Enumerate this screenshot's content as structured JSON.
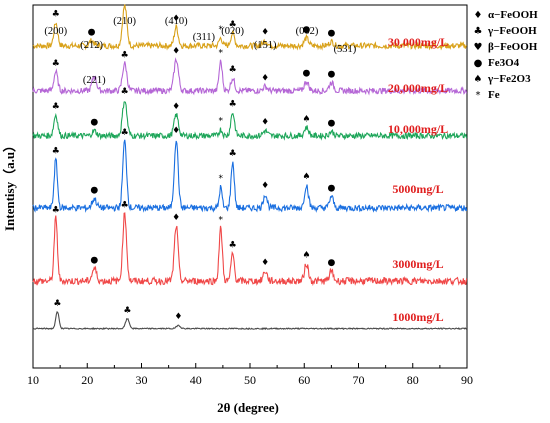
{
  "chart_data": {
    "type": "line",
    "title": "",
    "xlabel": "2θ (degree)",
    "ylabel": "Intentisy（a.u）",
    "xlim": [
      10,
      90
    ],
    "xticks": [
      10,
      20,
      30,
      40,
      50,
      60,
      70,
      80,
      90
    ],
    "grid": false,
    "legend_position": "right",
    "phase_legend": [
      {
        "symbol": "♦",
        "phase": "α−FeOOH"
      },
      {
        "symbol": "♣",
        "phase": "γ−FeOOH"
      },
      {
        "symbol": "♥",
        "phase": "β−FeOOH"
      },
      {
        "symbol": "●",
        "phase": "Fe3O4"
      },
      {
        "symbol": "♠",
        "phase": "γ−Fe2O3"
      },
      {
        "symbol": "*",
        "phase": "Fe"
      }
    ],
    "peak_labels": [
      {
        "text": "(200)",
        "x": 14.2
      },
      {
        "text": "(212)",
        "x": 20.8
      },
      {
        "text": "(210)",
        "x": 26.9
      },
      {
        "text": "(410)",
        "x": 36.4
      },
      {
        "text": "(311)",
        "x": 41.5
      },
      {
        "text": "(020)",
        "x": 46.8
      },
      {
        "text": "(151)",
        "x": 52.8
      },
      {
        "text": "(002)",
        "x": 60.5
      },
      {
        "text": "(531)",
        "x": 67.5
      },
      {
        "text": "(221)",
        "x": 21.3
      }
    ],
    "series": [
      {
        "name": "30,000mg/L",
        "color": "#d9a21b",
        "baseline": 0.22,
        "peaks": [
          [
            14.2,
            0.55,
            0.35
          ],
          [
            20.8,
            0.12,
            0.4
          ],
          [
            26.9,
            0.95,
            0.4
          ],
          [
            36.4,
            0.45,
            0.35
          ],
          [
            44.6,
            0.18,
            0.3
          ],
          [
            46.8,
            0.3,
            0.35
          ],
          [
            52.8,
            0.12,
            0.4
          ],
          [
            60.4,
            0.18,
            0.4
          ],
          [
            65.0,
            0.1,
            0.4
          ]
        ],
        "markers": [
          {
            "x": 14.2,
            "s": "♣"
          },
          {
            "x": 20.8,
            "s": "●"
          },
          {
            "x": 26.9,
            "s": "♥"
          },
          {
            "x": 36.4,
            "s": "♦"
          },
          {
            "x": 44.6,
            "s": "*"
          },
          {
            "x": 46.8,
            "s": "♣"
          },
          {
            "x": 52.8,
            "s": "♦"
          },
          {
            "x": 60.4,
            "s": "●"
          },
          {
            "x": 65.0,
            "s": "●"
          }
        ]
      },
      {
        "name": "20,000mg/L",
        "color": "#b567d6",
        "baseline": 0.22,
        "peaks": [
          [
            14.2,
            0.45,
            0.35
          ],
          [
            21.3,
            0.35,
            0.4
          ],
          [
            26.9,
            0.65,
            0.4
          ],
          [
            36.4,
            0.75,
            0.4
          ],
          [
            44.6,
            0.7,
            0.3
          ],
          [
            46.8,
            0.3,
            0.35
          ],
          [
            52.8,
            0.1,
            0.4
          ],
          [
            60.4,
            0.22,
            0.4
          ],
          [
            65.0,
            0.2,
            0.4
          ]
        ],
        "markers": [
          {
            "x": 14.2,
            "s": "♣"
          },
          {
            "x": 21.3,
            "s": ""
          },
          {
            "x": 26.9,
            "s": "♣"
          },
          {
            "x": 36.4,
            "s": "♦"
          },
          {
            "x": 44.6,
            "s": "*"
          },
          {
            "x": 46.8,
            "s": "♣"
          },
          {
            "x": 52.8,
            "s": "♦"
          },
          {
            "x": 60.4,
            "s": "●"
          },
          {
            "x": 65.0,
            "s": "●"
          }
        ]
      },
      {
        "name": "10,000mg/L",
        "color": "#1ea65a",
        "baseline": 0.22,
        "peaks": [
          [
            14.2,
            0.5,
            0.35
          ],
          [
            21.3,
            0.12,
            0.4
          ],
          [
            26.9,
            0.85,
            0.4
          ],
          [
            36.4,
            0.5,
            0.4
          ],
          [
            44.6,
            0.15,
            0.3
          ],
          [
            46.8,
            0.55,
            0.35
          ],
          [
            52.8,
            0.12,
            0.4
          ],
          [
            60.4,
            0.2,
            0.4
          ],
          [
            65.0,
            0.1,
            0.4
          ]
        ],
        "markers": [
          {
            "x": 14.2,
            "s": "♣"
          },
          {
            "x": 21.3,
            "s": "●"
          },
          {
            "x": 26.9,
            "s": "♣"
          },
          {
            "x": 36.4,
            "s": "♦"
          },
          {
            "x": 44.6,
            "s": "*"
          },
          {
            "x": 46.8,
            "s": "♣"
          },
          {
            "x": 52.8,
            "s": "♦"
          },
          {
            "x": 60.4,
            "s": "♠"
          },
          {
            "x": 65.0,
            "s": "●"
          }
        ]
      },
      {
        "name": "5000mg/L",
        "color": "#1a6fe0",
        "baseline": 0.22,
        "peaks": [
          [
            14.2,
            1.05,
            0.3
          ],
          [
            21.3,
            0.2,
            0.4
          ],
          [
            26.9,
            1.45,
            0.35
          ],
          [
            36.4,
            1.5,
            0.35
          ],
          [
            44.6,
            0.45,
            0.25
          ],
          [
            46.8,
            1.0,
            0.3
          ],
          [
            52.8,
            0.3,
            0.35
          ],
          [
            60.4,
            0.5,
            0.35
          ],
          [
            65.0,
            0.25,
            0.35
          ]
        ],
        "markers": [
          {
            "x": 14.2,
            "s": "♣"
          },
          {
            "x": 21.3,
            "s": "●"
          },
          {
            "x": 26.9,
            "s": "♣"
          },
          {
            "x": 36.4,
            "s": "♦"
          },
          {
            "x": 44.6,
            "s": "*"
          },
          {
            "x": 46.8,
            "s": "♣"
          },
          {
            "x": 52.8,
            "s": "♦"
          },
          {
            "x": 60.4,
            "s": "♠"
          },
          {
            "x": 65.0,
            "s": "●"
          }
        ]
      },
      {
        "name": "3000mg/L",
        "color": "#f04848",
        "baseline": 0.22,
        "peaks": [
          [
            14.2,
            1.25,
            0.3
          ],
          [
            21.3,
            0.25,
            0.4
          ],
          [
            26.9,
            1.35,
            0.35
          ],
          [
            36.4,
            1.1,
            0.35
          ],
          [
            44.6,
            1.05,
            0.3
          ],
          [
            46.8,
            0.55,
            0.3
          ],
          [
            52.8,
            0.2,
            0.35
          ],
          [
            60.4,
            0.35,
            0.35
          ],
          [
            65.0,
            0.2,
            0.35
          ]
        ],
        "markers": [
          {
            "x": 14.2,
            "s": "♣"
          },
          {
            "x": 21.3,
            "s": "●"
          },
          {
            "x": 26.9,
            "s": "♣"
          },
          {
            "x": 36.4,
            "s": "♦"
          },
          {
            "x": 44.6,
            "s": "*"
          },
          {
            "x": 46.8,
            "s": "♣"
          },
          {
            "x": 52.8,
            "s": "♦"
          },
          {
            "x": 60.4,
            "s": "♠"
          },
          {
            "x": 65.0,
            "s": "●"
          }
        ]
      },
      {
        "name": "1000mg/L",
        "color": "#4a4a4a",
        "baseline": 0.05,
        "peaks": [
          [
            14.5,
            0.6,
            0.3
          ],
          [
            27.4,
            0.35,
            0.35
          ],
          [
            36.8,
            0.12,
            0.35
          ]
        ],
        "markers": [
          {
            "x": 14.5,
            "s": "♣"
          },
          {
            "x": 27.4,
            "s": "♣"
          },
          {
            "x": 36.8,
            "s": "♦"
          }
        ]
      }
    ]
  }
}
